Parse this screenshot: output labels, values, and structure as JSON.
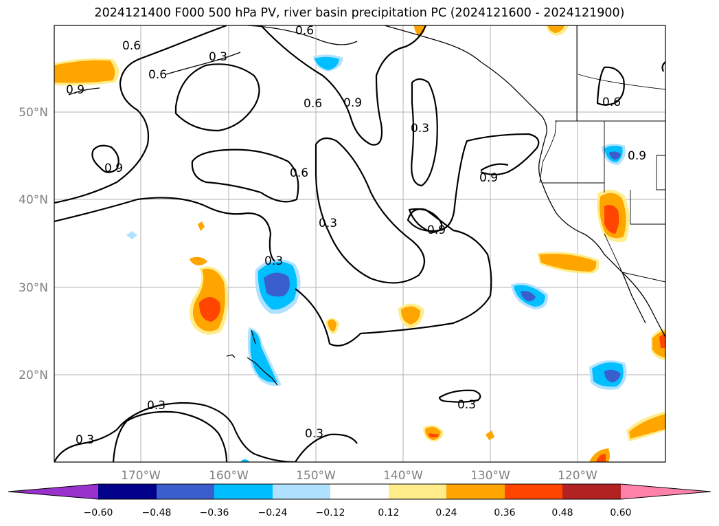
{
  "title": "2024121400 F000 500 hPa PV, river basin precipitation PC (2024121600 - 2024121900)",
  "map": {
    "lat_ticks": [
      "50°N",
      "40°N",
      "30°N",
      "20°N"
    ],
    "lon_ticks": [
      "170°W",
      "160°W",
      "150°W",
      "140°W",
      "130°W",
      "120°W"
    ],
    "contour_labels": [
      "0.6",
      "0.3",
      "0.6",
      "0.6",
      "0.9",
      "0.9",
      "0.6",
      "0.6",
      "0.3",
      "0.3",
      "0.9",
      "0.3",
      "0.9",
      "0.6",
      "0.9",
      "0.3",
      "0.3",
      "0.3",
      "0.3",
      "0.3"
    ]
  },
  "colorbar": {
    "colors": [
      "#9932cc",
      "#00008b",
      "#3a5fcd",
      "#00bfff",
      "#b0e2ff",
      "#ffffff",
      "#ffec8b",
      "#ffa500",
      "#ff4500",
      "#b22222",
      "#ff82ab"
    ],
    "tick_labels": [
      "−0.60",
      "−0.48",
      "−0.36",
      "−0.24",
      "−0.12",
      "0.12",
      "0.24",
      "0.36",
      "0.48",
      "0.60"
    ]
  }
}
